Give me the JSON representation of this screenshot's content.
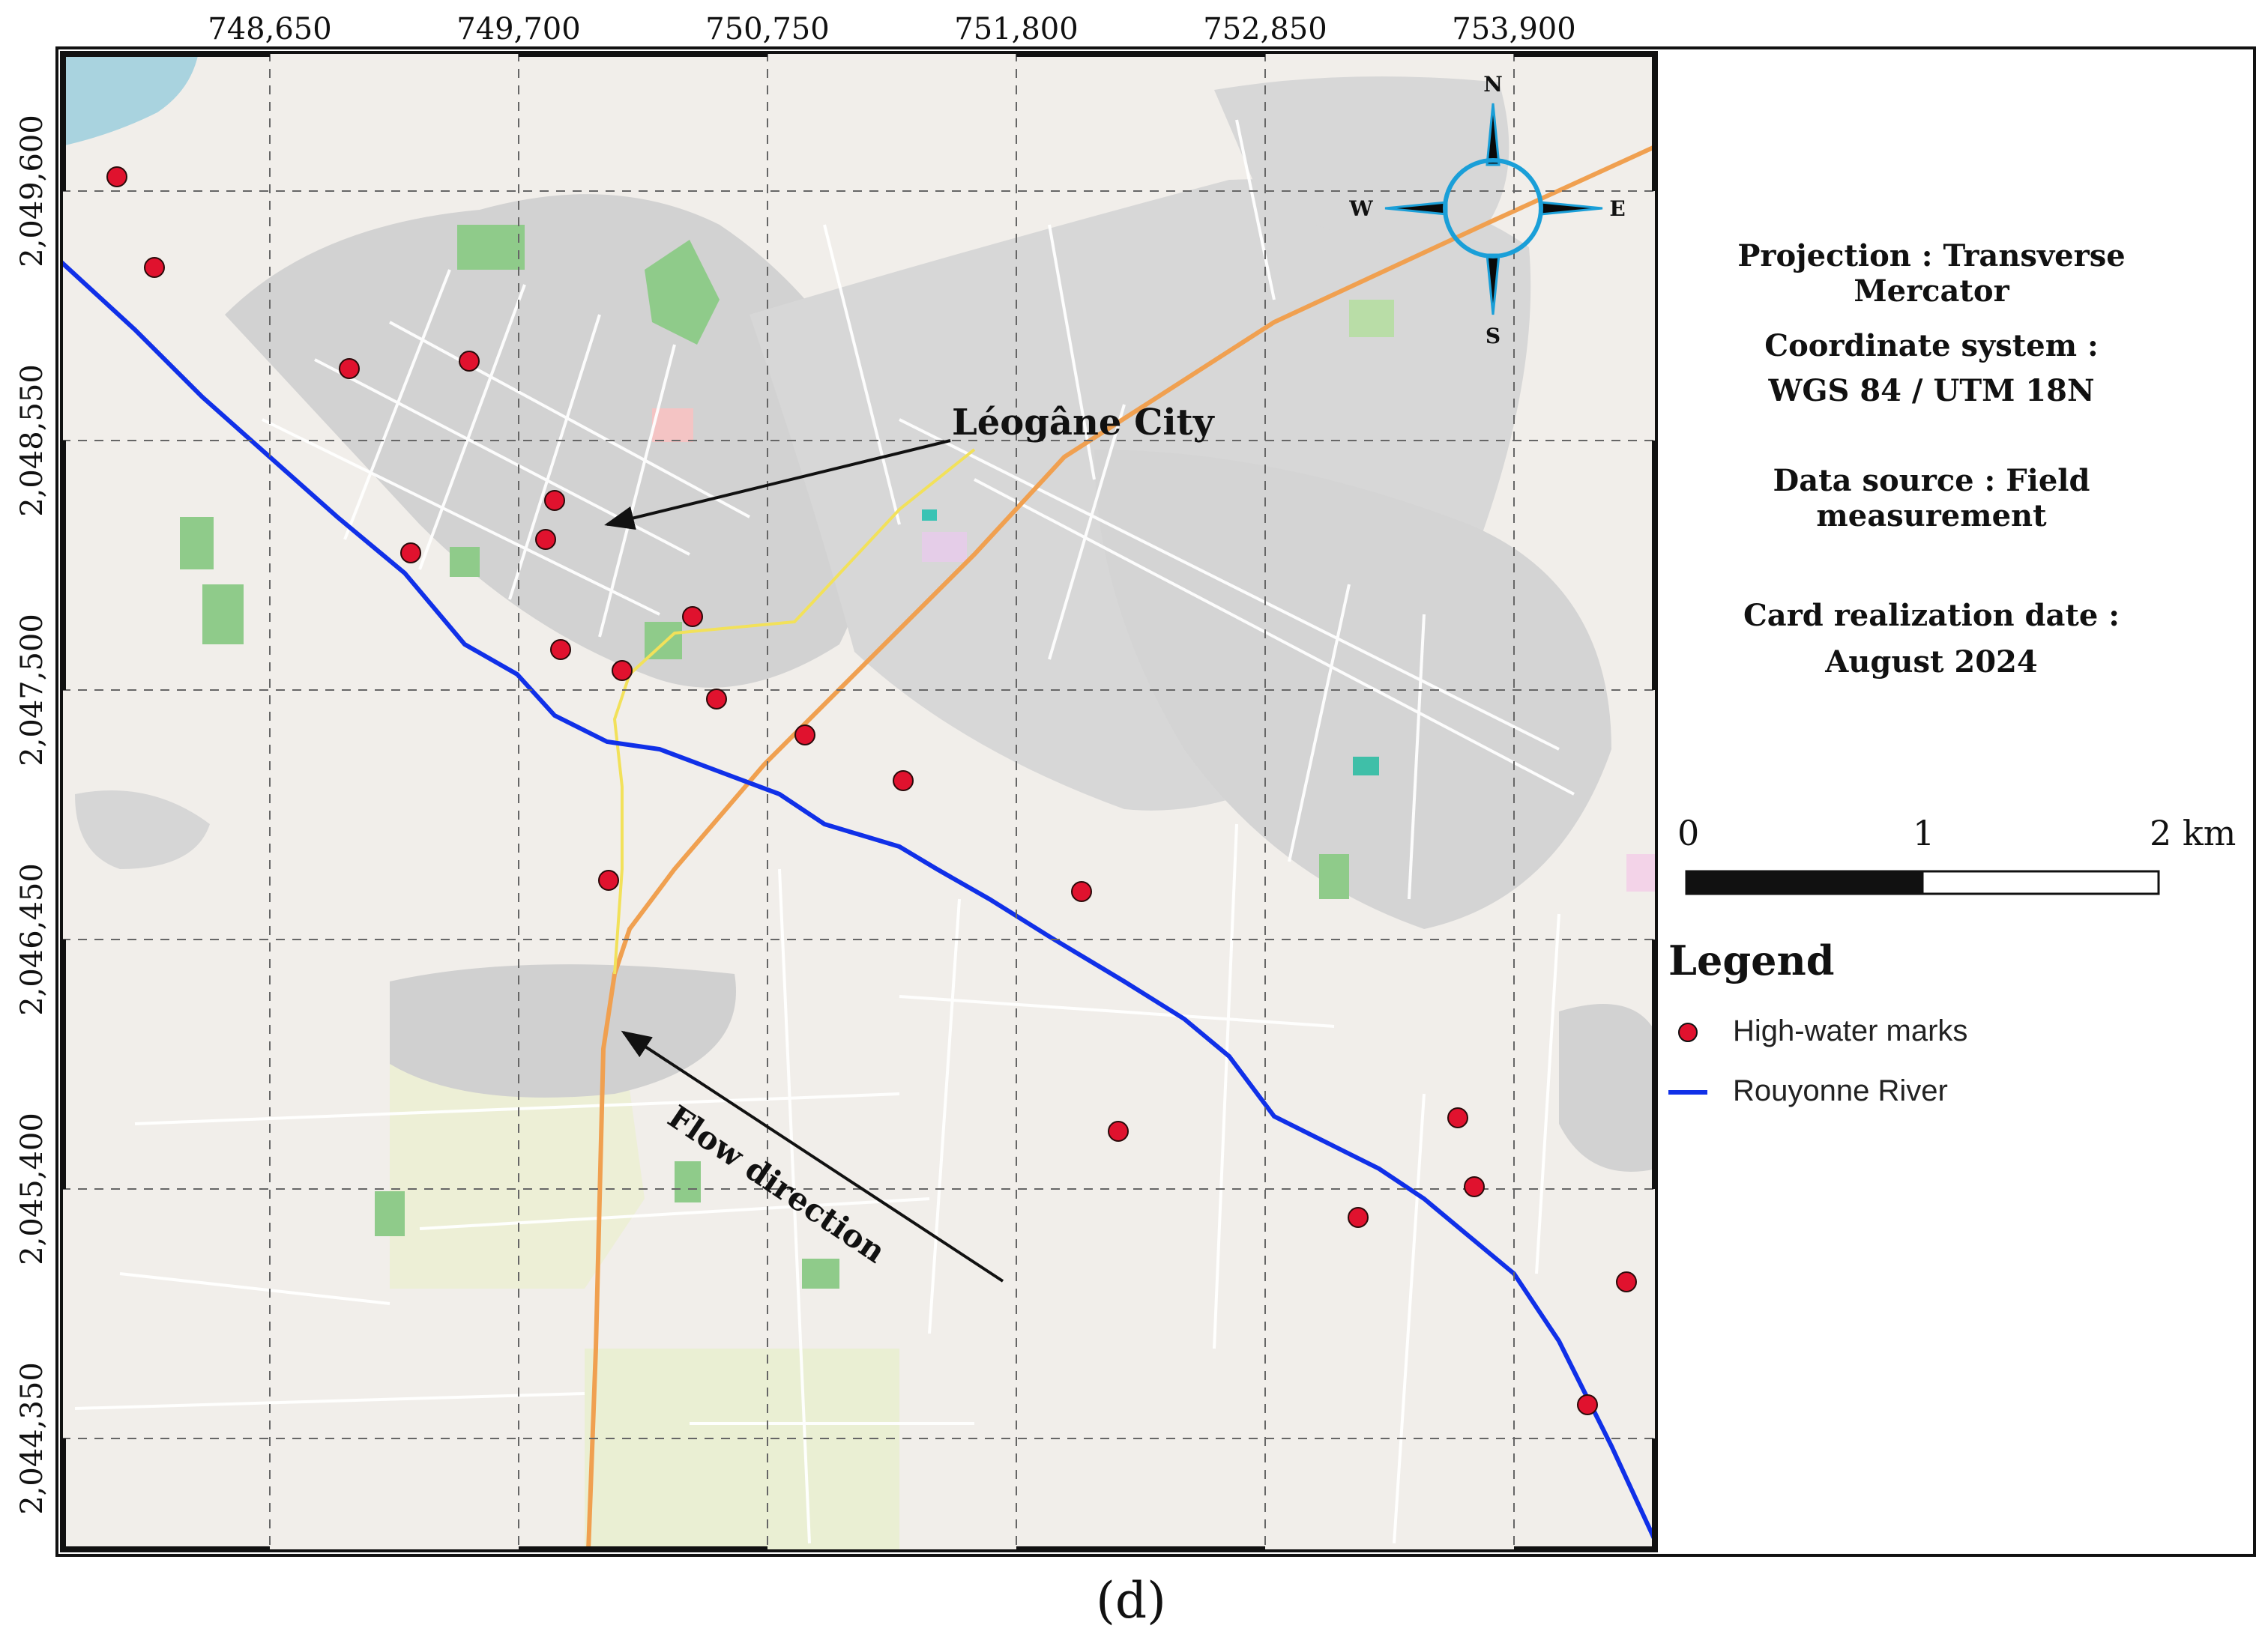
{
  "map": {
    "x_ticks": [
      "748,650",
      "749,700",
      "750,750",
      "751,800",
      "752,850",
      "753,900"
    ],
    "y_ticks": [
      "2,049,600",
      "2,048,550",
      "2,047,500",
      "2,046,450",
      "2,045,400",
      "2,044,350"
    ],
    "annotations": {
      "city_label": "Léogâne City",
      "flow_label": "Flow direction"
    },
    "compass": {
      "n": "N",
      "s": "S",
      "e": "E",
      "w": "W",
      "icon": "compass-rose"
    },
    "high_water_marks_count": 22,
    "colors": {
      "river": "#1030e8",
      "marks": "#e0122e",
      "road": "#f0a050",
      "sea": "#a9d3df",
      "land": "#f1eeea",
      "urban": "#d2d2d2",
      "vegetation": "#8fcb8a",
      "compass": "#1a9fd8"
    }
  },
  "info": {
    "projection": "Projection :  Transverse Mercator",
    "coord_label": "Coordinate system :",
    "coord_value": "WGS 84 / UTM 18N",
    "data_source": "Data source : Field measurement",
    "date_label": "Card realization date :",
    "date_value": "August 2024"
  },
  "scale_bar": {
    "labels": [
      "0",
      "1",
      "2 km"
    ]
  },
  "legend": {
    "title": "Legend",
    "items": [
      {
        "label": "High-water marks",
        "symbol": "red-circle"
      },
      {
        "label": "Rouyonne River",
        "symbol": "blue-line"
      }
    ]
  },
  "caption": "(d)"
}
